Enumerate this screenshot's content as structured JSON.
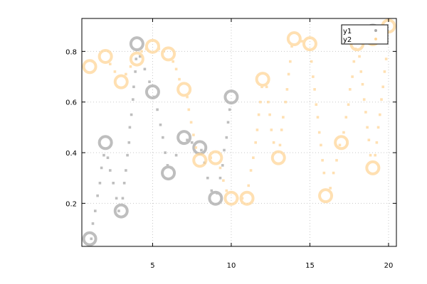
{
  "chart_data": {
    "type": "scatter",
    "title": "",
    "xlabel": "",
    "ylabel": "",
    "xlim": [
      0.5,
      20.5
    ],
    "ylim": [
      0.03,
      0.93
    ],
    "xticks": [
      5,
      10,
      15,
      20
    ],
    "yticks": [
      0.2,
      0.4,
      0.6,
      0.8
    ],
    "grid": true,
    "legend_position": "top-right",
    "series": [
      {
        "name": "y1",
        "color": "#a9a9a9",
        "marker_points": [
          {
            "x": 1,
            "y": 0.06
          },
          {
            "x": 2,
            "y": 0.44
          },
          {
            "x": 3,
            "y": 0.17
          },
          {
            "x": 4,
            "y": 0.83
          },
          {
            "x": 5,
            "y": 0.64
          },
          {
            "x": 6,
            "y": 0.32
          },
          {
            "x": 7,
            "y": 0.46
          },
          {
            "x": 8,
            "y": 0.42
          },
          {
            "x": 9,
            "y": 0.22
          },
          {
            "x": 10,
            "y": 0.62
          },
          {
            "x": 19,
            "y": 0.88
          }
        ],
        "dots": [
          {
            "x": 1.1,
            "y": 0.06
          },
          {
            "x": 1.2,
            "y": 0.12
          },
          {
            "x": 1.35,
            "y": 0.17
          },
          {
            "x": 1.5,
            "y": 0.23
          },
          {
            "x": 1.65,
            "y": 0.28
          },
          {
            "x": 1.75,
            "y": 0.34
          },
          {
            "x": 1.9,
            "y": 0.39
          },
          {
            "x": 2.15,
            "y": 0.38
          },
          {
            "x": 2.3,
            "y": 0.33
          },
          {
            "x": 2.5,
            "y": 0.28
          },
          {
            "x": 2.7,
            "y": 0.22
          },
          {
            "x": 2.85,
            "y": 0.17
          },
          {
            "x": 3.1,
            "y": 0.22
          },
          {
            "x": 3.2,
            "y": 0.28
          },
          {
            "x": 3.3,
            "y": 0.33
          },
          {
            "x": 3.4,
            "y": 0.39
          },
          {
            "x": 3.5,
            "y": 0.44
          },
          {
            "x": 3.55,
            "y": 0.5
          },
          {
            "x": 3.65,
            "y": 0.55
          },
          {
            "x": 3.75,
            "y": 0.61
          },
          {
            "x": 3.8,
            "y": 0.66
          },
          {
            "x": 3.9,
            "y": 0.72
          },
          {
            "x": 3.95,
            "y": 0.77
          },
          {
            "x": 4.2,
            "y": 0.78
          },
          {
            "x": 4.5,
            "y": 0.73
          },
          {
            "x": 4.8,
            "y": 0.68
          },
          {
            "x": 5.1,
            "y": 0.62
          },
          {
            "x": 5.3,
            "y": 0.57
          },
          {
            "x": 5.5,
            "y": 0.51
          },
          {
            "x": 5.65,
            "y": 0.46
          },
          {
            "x": 5.8,
            "y": 0.4
          },
          {
            "x": 5.95,
            "y": 0.35
          },
          {
            "x": 6.2,
            "y": 0.34
          },
          {
            "x": 6.5,
            "y": 0.39
          },
          {
            "x": 6.8,
            "y": 0.44
          },
          {
            "x": 7.2,
            "y": 0.45
          },
          {
            "x": 7.5,
            "y": 0.44
          },
          {
            "x": 8.1,
            "y": 0.41
          },
          {
            "x": 8.3,
            "y": 0.36
          },
          {
            "x": 8.5,
            "y": 0.3
          },
          {
            "x": 8.75,
            "y": 0.25
          },
          {
            "x": 9.1,
            "y": 0.24
          },
          {
            "x": 9.3,
            "y": 0.3
          },
          {
            "x": 9.45,
            "y": 0.35
          },
          {
            "x": 9.55,
            "y": 0.41
          },
          {
            "x": 9.7,
            "y": 0.46
          },
          {
            "x": 9.8,
            "y": 0.52
          },
          {
            "x": 9.9,
            "y": 0.57
          }
        ]
      },
      {
        "name": "y2",
        "color": "#ffd699",
        "marker_points": [
          {
            "x": 1,
            "y": 0.74
          },
          {
            "x": 2,
            "y": 0.78
          },
          {
            "x": 3,
            "y": 0.68
          },
          {
            "x": 4,
            "y": 0.77
          },
          {
            "x": 5,
            "y": 0.82
          },
          {
            "x": 6,
            "y": 0.79
          },
          {
            "x": 7,
            "y": 0.65
          },
          {
            "x": 8,
            "y": 0.37
          },
          {
            "x": 9,
            "y": 0.38
          },
          {
            "x": 10,
            "y": 0.22
          },
          {
            "x": 11,
            "y": 0.22
          },
          {
            "x": 12,
            "y": 0.69
          },
          {
            "x": 13,
            "y": 0.38
          },
          {
            "x": 14,
            "y": 0.85
          },
          {
            "x": 15,
            "y": 0.83
          },
          {
            "x": 16,
            "y": 0.23
          },
          {
            "x": 17,
            "y": 0.44
          },
          {
            "x": 18,
            "y": 0.83
          },
          {
            "x": 19,
            "y": 0.34
          },
          {
            "x": 19,
            "y": 0.85
          },
          {
            "x": 20,
            "y": 0.9
          }
        ],
        "dots": [
          {
            "x": 2.3,
            "y": 0.75
          },
          {
            "x": 2.6,
            "y": 0.72
          },
          {
            "x": 3.3,
            "y": 0.71
          },
          {
            "x": 3.6,
            "y": 0.74
          },
          {
            "x": 4.3,
            "y": 0.8
          },
          {
            "x": 4.6,
            "y": 0.81
          },
          {
            "x": 5.4,
            "y": 0.81
          },
          {
            "x": 5.7,
            "y": 0.8
          },
          {
            "x": 6.3,
            "y": 0.76
          },
          {
            "x": 6.5,
            "y": 0.73
          },
          {
            "x": 6.7,
            "y": 0.69
          },
          {
            "x": 7.2,
            "y": 0.62
          },
          {
            "x": 7.3,
            "y": 0.57
          },
          {
            "x": 7.45,
            "y": 0.52
          },
          {
            "x": 7.6,
            "y": 0.47
          },
          {
            "x": 7.75,
            "y": 0.42
          },
          {
            "x": 8.4,
            "y": 0.37
          },
          {
            "x": 8.7,
            "y": 0.38
          },
          {
            "x": 9.3,
            "y": 0.34
          },
          {
            "x": 9.5,
            "y": 0.29
          },
          {
            "x": 9.7,
            "y": 0.25
          },
          {
            "x": 10.4,
            "y": 0.22
          },
          {
            "x": 10.7,
            "y": 0.22
          },
          {
            "x": 11.1,
            "y": 0.27
          },
          {
            "x": 11.25,
            "y": 0.33
          },
          {
            "x": 11.4,
            "y": 0.38
          },
          {
            "x": 11.55,
            "y": 0.44
          },
          {
            "x": 11.65,
            "y": 0.49
          },
          {
            "x": 11.75,
            "y": 0.55
          },
          {
            "x": 11.85,
            "y": 0.6
          },
          {
            "x": 11.95,
            "y": 0.66
          },
          {
            "x": 12.25,
            "y": 0.66
          },
          {
            "x": 12.35,
            "y": 0.6
          },
          {
            "x": 12.45,
            "y": 0.55
          },
          {
            "x": 12.55,
            "y": 0.49
          },
          {
            "x": 12.7,
            "y": 0.44
          },
          {
            "x": 13.1,
            "y": 0.43
          },
          {
            "x": 13.2,
            "y": 0.49
          },
          {
            "x": 13.3,
            "y": 0.54
          },
          {
            "x": 13.45,
            "y": 0.6
          },
          {
            "x": 13.55,
            "y": 0.65
          },
          {
            "x": 13.65,
            "y": 0.71
          },
          {
            "x": 13.75,
            "y": 0.76
          },
          {
            "x": 13.85,
            "y": 0.82
          },
          {
            "x": 14.5,
            "y": 0.84
          },
          {
            "x": 15.1,
            "y": 0.76
          },
          {
            "x": 15.2,
            "y": 0.7
          },
          {
            "x": 15.3,
            "y": 0.65
          },
          {
            "x": 15.4,
            "y": 0.59
          },
          {
            "x": 15.5,
            "y": 0.54
          },
          {
            "x": 15.6,
            "y": 0.48
          },
          {
            "x": 15.7,
            "y": 0.43
          },
          {
            "x": 15.8,
            "y": 0.37
          },
          {
            "x": 15.9,
            "y": 0.32
          },
          {
            "x": 16.3,
            "y": 0.26
          },
          {
            "x": 16.5,
            "y": 0.32
          },
          {
            "x": 16.7,
            "y": 0.37
          },
          {
            "x": 16.9,
            "y": 0.43
          },
          {
            "x": 17.15,
            "y": 0.48
          },
          {
            "x": 17.3,
            "y": 0.54
          },
          {
            "x": 17.45,
            "y": 0.59
          },
          {
            "x": 17.55,
            "y": 0.65
          },
          {
            "x": 17.7,
            "y": 0.7
          },
          {
            "x": 17.8,
            "y": 0.76
          },
          {
            "x": 17.9,
            "y": 0.81
          },
          {
            "x": 18.15,
            "y": 0.78
          },
          {
            "x": 18.25,
            "y": 0.72
          },
          {
            "x": 18.35,
            "y": 0.67
          },
          {
            "x": 18.45,
            "y": 0.61
          },
          {
            "x": 18.55,
            "y": 0.56
          },
          {
            "x": 18.65,
            "y": 0.5
          },
          {
            "x": 18.75,
            "y": 0.45
          },
          {
            "x": 18.85,
            "y": 0.39
          },
          {
            "x": 19.15,
            "y": 0.39
          },
          {
            "x": 19.25,
            "y": 0.44
          },
          {
            "x": 19.35,
            "y": 0.5
          },
          {
            "x": 19.45,
            "y": 0.55
          },
          {
            "x": 19.55,
            "y": 0.61
          },
          {
            "x": 19.65,
            "y": 0.66
          },
          {
            "x": 19.75,
            "y": 0.72
          },
          {
            "x": 19.85,
            "y": 0.77
          }
        ]
      }
    ]
  }
}
